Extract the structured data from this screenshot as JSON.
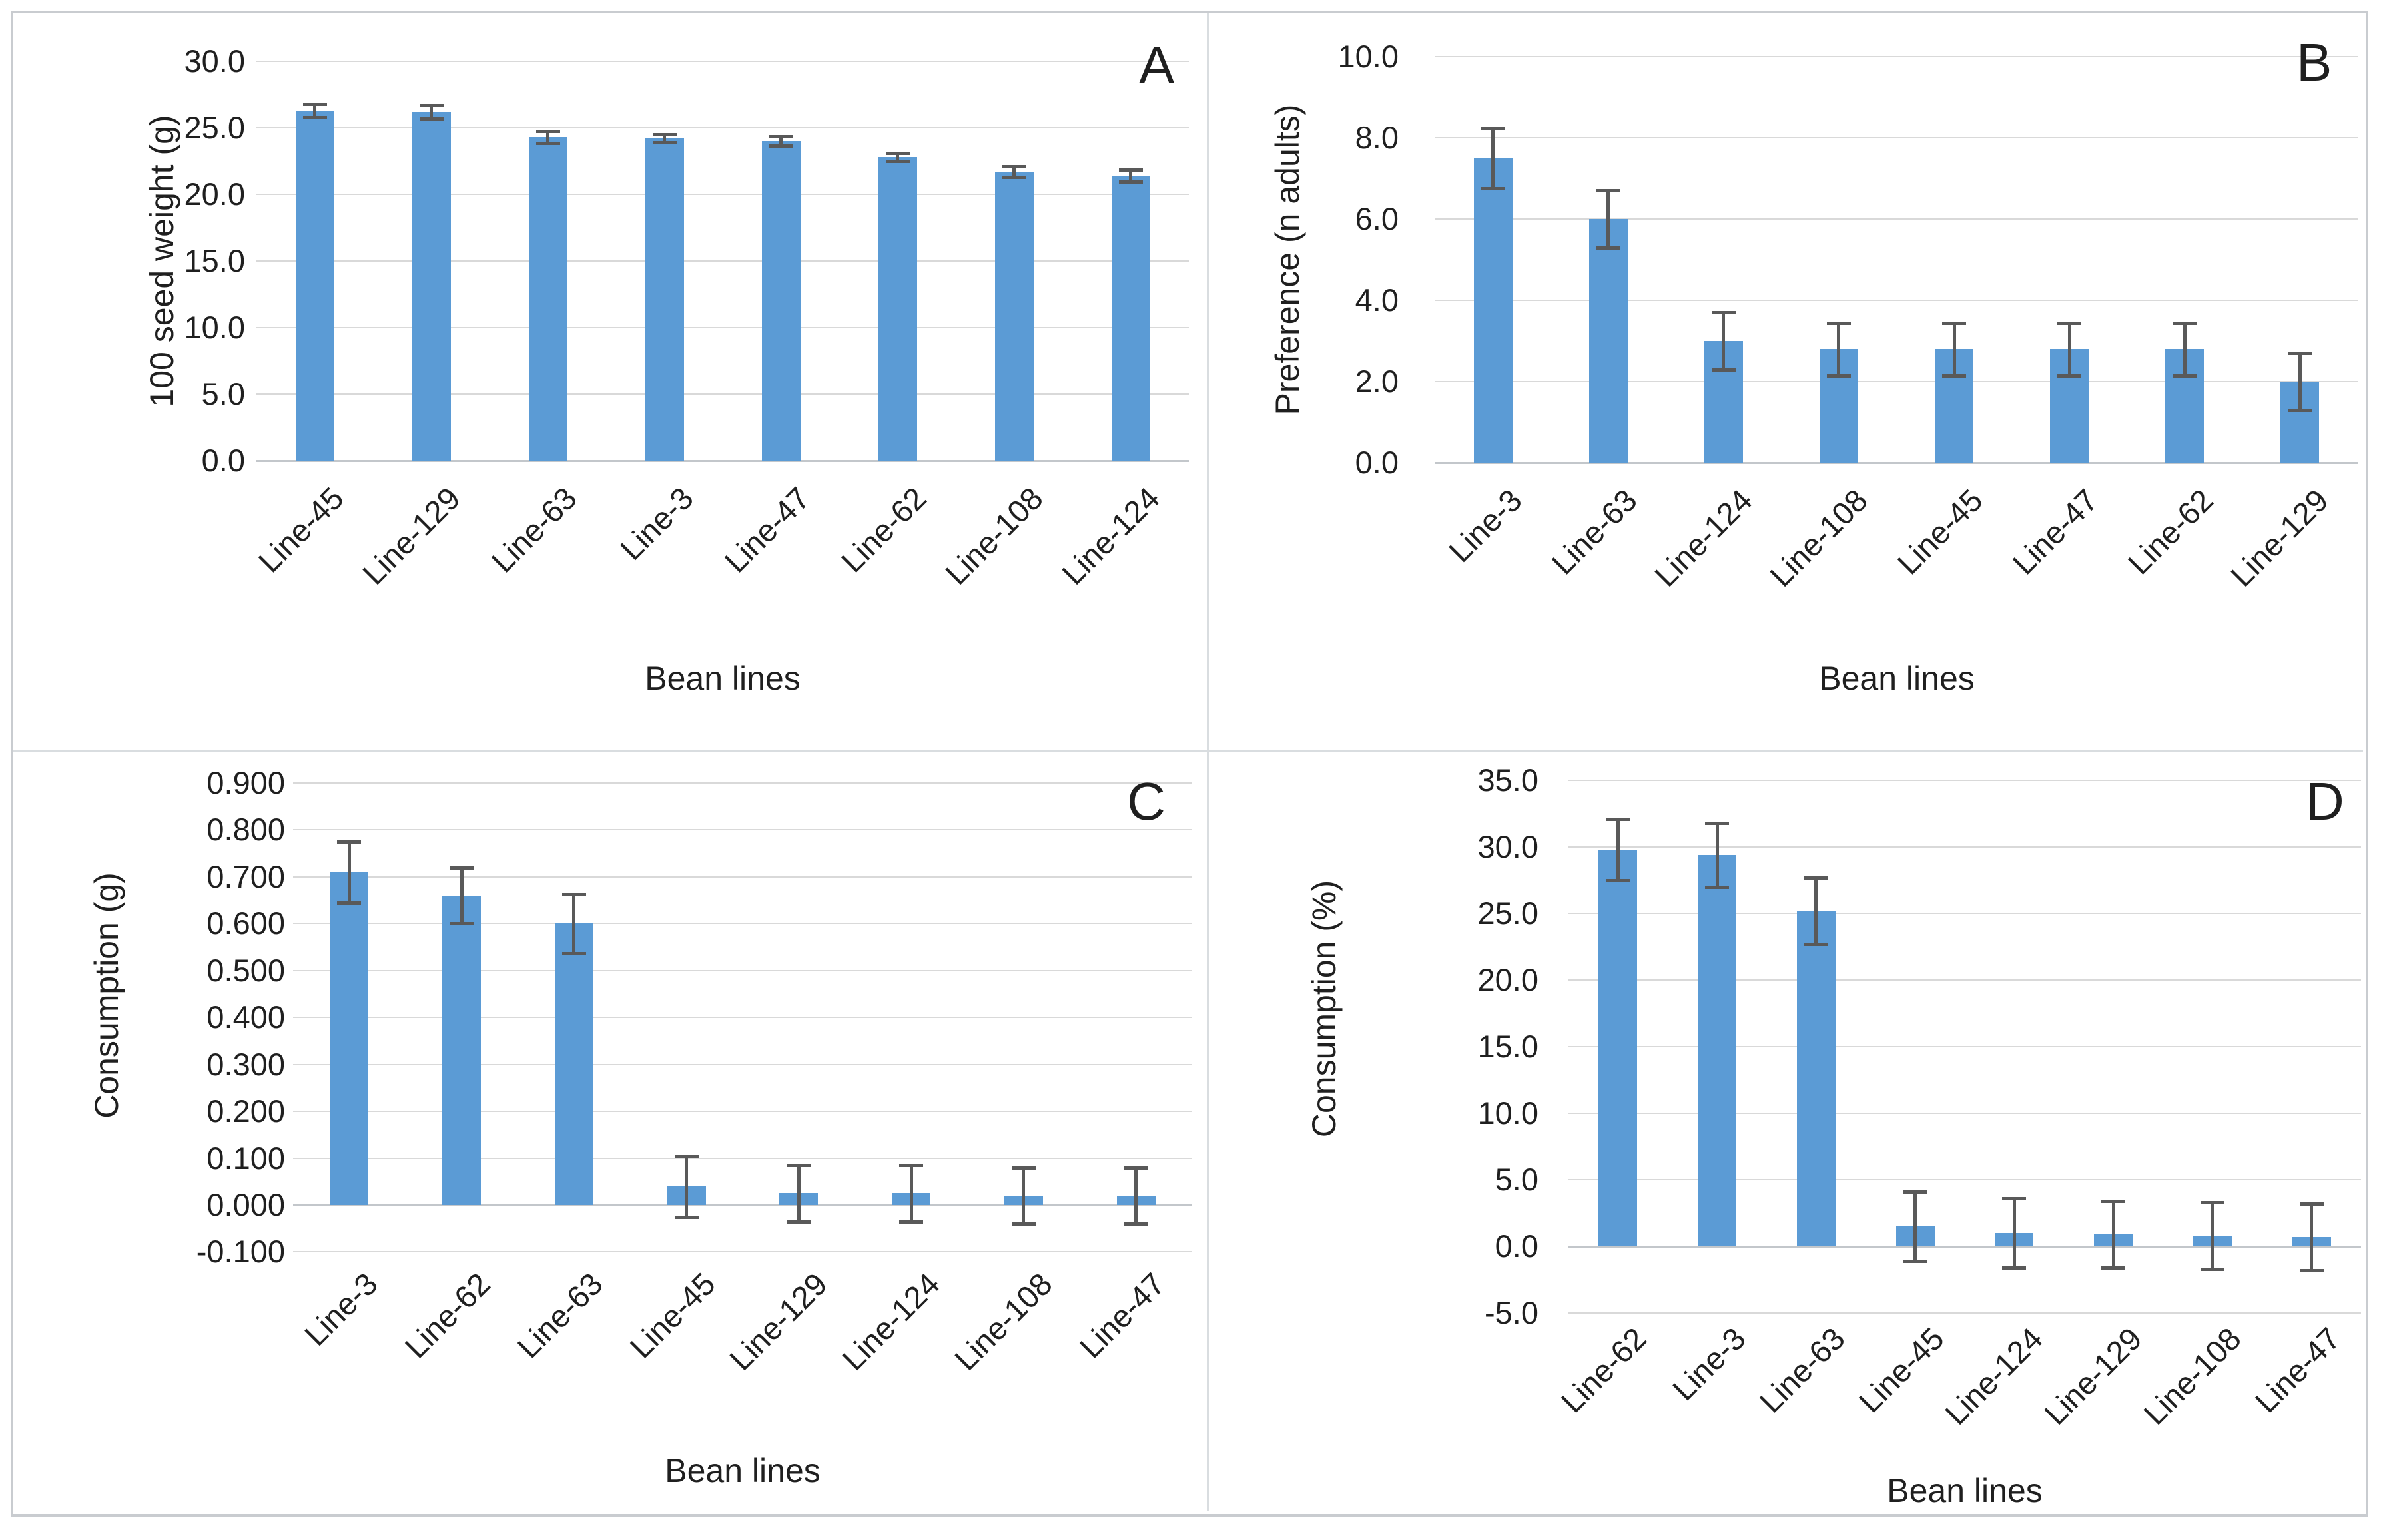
{
  "figure": {
    "background": "#ffffff",
    "frame_color": "#c9ccd0",
    "divider_color": "#d9dde0",
    "bar_color": "#5b9bd5",
    "error_bar_color": "#595959",
    "gridline_color": "#d9d9d9",
    "zero_axis_color": "#c3c7cb",
    "text_color": "#1f1f1f"
  },
  "chart_data": [
    {
      "panel_letter": "A",
      "type": "bar",
      "title": "",
      "xlabel": "Bean lines",
      "ylabel": "100 seed weight (g)",
      "categories": [
        "Line-45",
        "Line-129",
        "Line-63",
        "Line-3",
        "Line-47",
        "Line-62",
        "Line-108",
        "Line-124"
      ],
      "values": [
        26.3,
        26.2,
        24.3,
        24.2,
        24.0,
        22.8,
        21.7,
        21.4
      ],
      "errors": [
        0.5,
        0.5,
        0.45,
        0.3,
        0.35,
        0.3,
        0.4,
        0.45
      ],
      "yticks": [
        "30.0",
        "25.0",
        "20.0",
        "15.0",
        "10.0",
        "5.0",
        "0.0"
      ],
      "ylim": [
        0,
        30
      ],
      "grid": true,
      "legend": "none"
    },
    {
      "panel_letter": "B",
      "type": "bar",
      "title": "",
      "xlabel": "Bean lines",
      "ylabel": "Preference (n adults)",
      "categories": [
        "Line-3",
        "Line-63",
        "Line-124",
        "Line-108",
        "Line-45",
        "Line-47",
        "Line-62",
        "Line-129"
      ],
      "values": [
        7.5,
        6.0,
        3.0,
        2.8,
        2.8,
        2.8,
        2.8,
        2.0
      ],
      "errors": [
        0.75,
        0.7,
        0.7,
        0.65,
        0.65,
        0.65,
        0.65,
        0.7
      ],
      "yticks": [
        "10.0",
        "8.0",
        "6.0",
        "4.0",
        "2.0",
        "0.0"
      ],
      "ylim": [
        0,
        10
      ],
      "grid": true,
      "legend": "none"
    },
    {
      "panel_letter": "C",
      "type": "bar",
      "title": "",
      "xlabel": "Bean lines",
      "ylabel": "Consumption (g)",
      "categories": [
        "Line-3",
        "Line-62",
        "Line-63",
        "Line-45",
        "Line-129",
        "Line-124",
        "Line-108",
        "Line-47"
      ],
      "values": [
        0.71,
        0.66,
        0.6,
        0.04,
        0.025,
        0.025,
        0.02,
        0.02
      ],
      "errors": [
        0.065,
        0.06,
        0.063,
        0.065,
        0.06,
        0.06,
        0.06,
        0.06
      ],
      "yticks": [
        "0.900",
        "0.800",
        "0.700",
        "0.600",
        "0.500",
        "0.400",
        "0.300",
        "0.200",
        "0.100",
        "0.000",
        "-0.100"
      ],
      "ylim": [
        -0.1,
        0.9
      ],
      "grid": true,
      "legend": "none"
    },
    {
      "panel_letter": "D",
      "type": "bar",
      "title": "",
      "xlabel": "Bean lines",
      "ylabel": "Consumption (%)",
      "categories": [
        "Line-62",
        "Line-3",
        "Line-63",
        "Line-45",
        "Line-124",
        "Line-129",
        "Line-108",
        "Line-47"
      ],
      "values": [
        29.8,
        29.4,
        25.2,
        1.5,
        1.0,
        0.9,
        0.8,
        0.7
      ],
      "errors": [
        2.3,
        2.4,
        2.5,
        2.6,
        2.6,
        2.5,
        2.5,
        2.5
      ],
      "yticks": [
        "35.0",
        "30.0",
        "25.0",
        "20.0",
        "15.0",
        "10.0",
        "5.0",
        "0.0",
        "-5.0"
      ],
      "ylim": [
        -5,
        35
      ],
      "grid": true,
      "legend": "none"
    }
  ]
}
